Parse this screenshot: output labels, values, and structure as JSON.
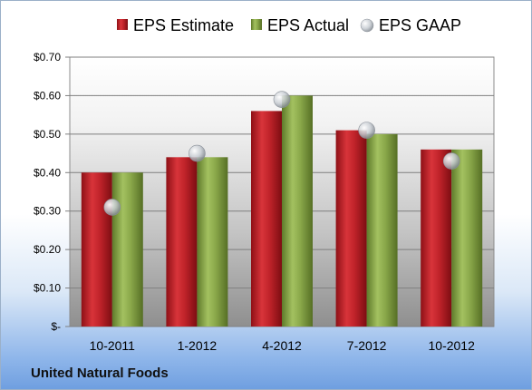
{
  "company": "United Natural Foods",
  "colors": {
    "estimate": "#c0232a",
    "actual": "#8aa84a",
    "gaap": "#b8bec6"
  },
  "chart_data": {
    "type": "bar",
    "categories": [
      "10-2011",
      "1-2012",
      "4-2012",
      "7-2012",
      "10-2012"
    ],
    "series": [
      {
        "name": "EPS Estimate",
        "values": [
          0.4,
          0.44,
          0.56,
          0.51,
          0.46
        ]
      },
      {
        "name": "EPS Actual",
        "values": [
          0.4,
          0.44,
          0.6,
          0.5,
          0.46
        ]
      },
      {
        "name": "EPS GAAP",
        "type": "scatter",
        "values": [
          0.31,
          0.45,
          0.59,
          0.51,
          0.43
        ]
      }
    ],
    "ylim": [
      0,
      0.7
    ],
    "yticks": [
      0,
      0.1,
      0.2,
      0.3,
      0.4,
      0.5,
      0.6,
      0.7
    ],
    "ytick_labels": [
      "$-",
      "$0.10",
      "$0.20",
      "$0.30",
      "$0.40",
      "$0.50",
      "$0.60",
      "$0.70"
    ],
    "legend_position": "top",
    "grid": true
  }
}
